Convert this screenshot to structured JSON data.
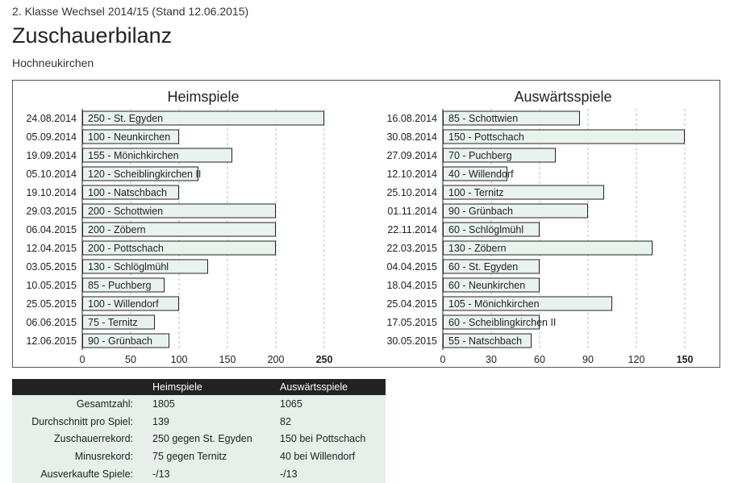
{
  "header": {
    "subtitle": "2. Klasse Wechsel 2014/15 (Stand 12.06.2015)",
    "title": "Zuschauerbilanz",
    "team": "Hochneukirchen"
  },
  "colors": {
    "bar_fill": "#e9f3ee",
    "bar_stroke": "#222222",
    "grid": "#bbbbbb",
    "table_header_bg": "#222222",
    "table_row_bg": "#e6efe9"
  },
  "chart_data": [
    {
      "type": "bar",
      "orientation": "horizontal",
      "title": "Heimspiele",
      "xlim": [
        0,
        250
      ],
      "xticks": [
        0,
        50,
        100,
        150,
        200,
        250
      ],
      "grid": true,
      "categories": [
        "24.08.2014",
        "05.09.2014",
        "19.09.2014",
        "05.10.2014",
        "19.10.2014",
        "29.03.2015",
        "06.04.2015",
        "12.04.2015",
        "03.05.2015",
        "10.05.2015",
        "25.05.2015",
        "06.06.2015",
        "12.06.2015"
      ],
      "values": [
        250,
        100,
        155,
        120,
        100,
        200,
        200,
        200,
        130,
        85,
        100,
        75,
        90
      ],
      "opponents": [
        "St. Egyden",
        "Neunkirchen",
        "Mönichkirchen",
        "Scheiblingkirchen II",
        "Natschbach",
        "Schottwien",
        "Zöbern",
        "Pottschach",
        "Schlöglmühl",
        "Puchberg",
        "Willendorf",
        "Ternitz",
        "Grünbach"
      ],
      "bar_labels": [
        "250 - St. Egyden",
        "100 - Neunkirchen",
        "155 - Mönichkirchen",
        "120 - Scheiblingkirchen II",
        "100 - Natschbach",
        "200 - Schottwien",
        "200 - Zöbern",
        "200 - Pottschach",
        "130 - Schlöglmühl",
        "85 - Puchberg",
        "100 - Willendorf",
        "75 - Ternitz",
        "90 - Grünbach"
      ]
    },
    {
      "type": "bar",
      "orientation": "horizontal",
      "title": "Auswärtsspiele",
      "xlim": [
        0,
        150
      ],
      "xticks": [
        0,
        30,
        60,
        90,
        120,
        150
      ],
      "grid": true,
      "categories": [
        "16.08.2014",
        "30.08.2014",
        "27.09.2014",
        "12.10.2014",
        "25.10.2014",
        "01.11.2014",
        "22.11.2014",
        "22.03.2015",
        "04.04.2015",
        "18.04.2015",
        "25.04.2015",
        "17.05.2015",
        "30.05.2015"
      ],
      "values": [
        85,
        150,
        70,
        40,
        100,
        90,
        60,
        130,
        60,
        60,
        105,
        60,
        55
      ],
      "opponents": [
        "Schottwien",
        "Pottschach",
        "Puchberg",
        "Willendorf",
        "Ternitz",
        "Grünbach",
        "Schlöglmühl",
        "Zöbern",
        "St. Egyden",
        "Neunkirchen",
        "Mönichkirchen",
        "Scheiblingkirchen II",
        "Natschbach"
      ],
      "bar_labels": [
        "85 - Schottwien",
        "150 - Pottschach",
        "70 - Puchberg",
        "40 - Willendorf",
        "100 - Ternitz",
        "90 - Grünbach",
        "60 - Schlöglmühl",
        "130 - Zöbern",
        "60 - St. Egyden",
        "60 - Neunkirchen",
        "105 - Mönichkirchen",
        "60 - Scheiblingkirchen II",
        "55 - Natschbach"
      ]
    }
  ],
  "stats": {
    "col_home": "Heimspiele",
    "col_away": "Auswärtsspiele",
    "rows": [
      {
        "label": "Gesamtzahl:",
        "home": "1805",
        "away": "1065"
      },
      {
        "label": "Durchschnitt pro Spiel:",
        "home": "139",
        "away": "82"
      },
      {
        "label": "Zuschauerrekord:",
        "home": "250 gegen St. Egyden",
        "away": "150 bei Pottschach"
      },
      {
        "label": "Minusrekord:",
        "home": "75 gegen Ternitz",
        "away": "40 bei Willendorf"
      },
      {
        "label": "Ausverkaufte Spiele:",
        "home": "-/13",
        "away": "-/13"
      }
    ]
  }
}
